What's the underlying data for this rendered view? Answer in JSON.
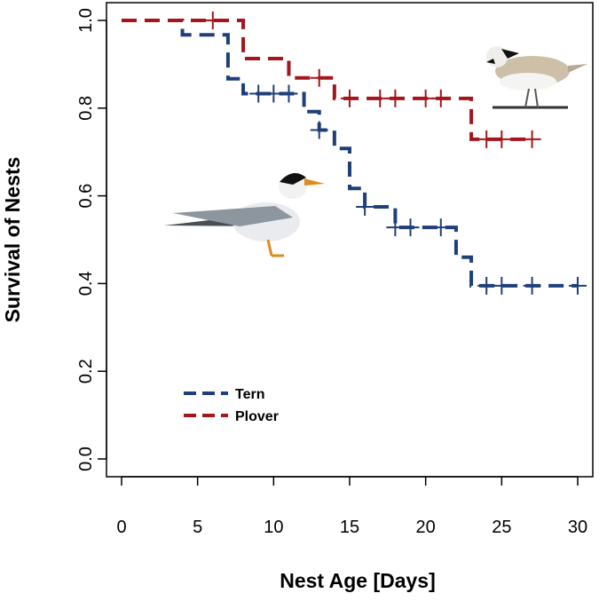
{
  "chart_data": {
    "type": "survival",
    "xlabel": "Nest Age [Days]",
    "ylabel": "Survival of Nests",
    "xlim": [
      0,
      30
    ],
    "ylim": [
      0,
      1
    ],
    "xticks": [
      0,
      5,
      10,
      15,
      20,
      25,
      30
    ],
    "yticks": [
      {
        "value": 0,
        "label": "0.0"
      },
      {
        "value": 0.2,
        "label": "0.2"
      },
      {
        "value": 0.4,
        "label": "0.4"
      },
      {
        "value": 0.6,
        "label": "0.6"
      },
      {
        "value": 0.8,
        "label": "0.8"
      },
      {
        "value": 1,
        "label": "1.0"
      }
    ],
    "legend": "bottom-left",
    "series": [
      {
        "name": "Tern",
        "color": "#1f3f7a",
        "x": [
          0,
          4,
          7,
          8,
          12,
          13,
          14,
          15,
          16,
          18,
          22,
          23,
          30
        ],
        "values": [
          1,
          0.967,
          0.867,
          0.833,
          0.792,
          0.75,
          0.708,
          0.617,
          0.575,
          0.528,
          0.46,
          0.395,
          0.395
        ],
        "censor_x": [
          9,
          10,
          11,
          13,
          16,
          18,
          19,
          21,
          24,
          25,
          27,
          30
        ],
        "censor_values": [
          0.833,
          0.833,
          0.833,
          0.75,
          0.575,
          0.528,
          0.528,
          0.528,
          0.395,
          0.395,
          0.395,
          0.395
        ]
      },
      {
        "name": "Plover",
        "color": "#a3161c",
        "x": [
          0,
          8,
          11,
          14,
          23,
          27
        ],
        "values": [
          1,
          0.913,
          0.869,
          0.822,
          0.729,
          0.729
        ],
        "censor_x": [
          6,
          13,
          15,
          17,
          18,
          20,
          21,
          24,
          25,
          27
        ],
        "censor_values": [
          1,
          0.869,
          0.822,
          0.822,
          0.822,
          0.822,
          0.822,
          0.729,
          0.729,
          0.729
        ]
      }
    ]
  }
}
